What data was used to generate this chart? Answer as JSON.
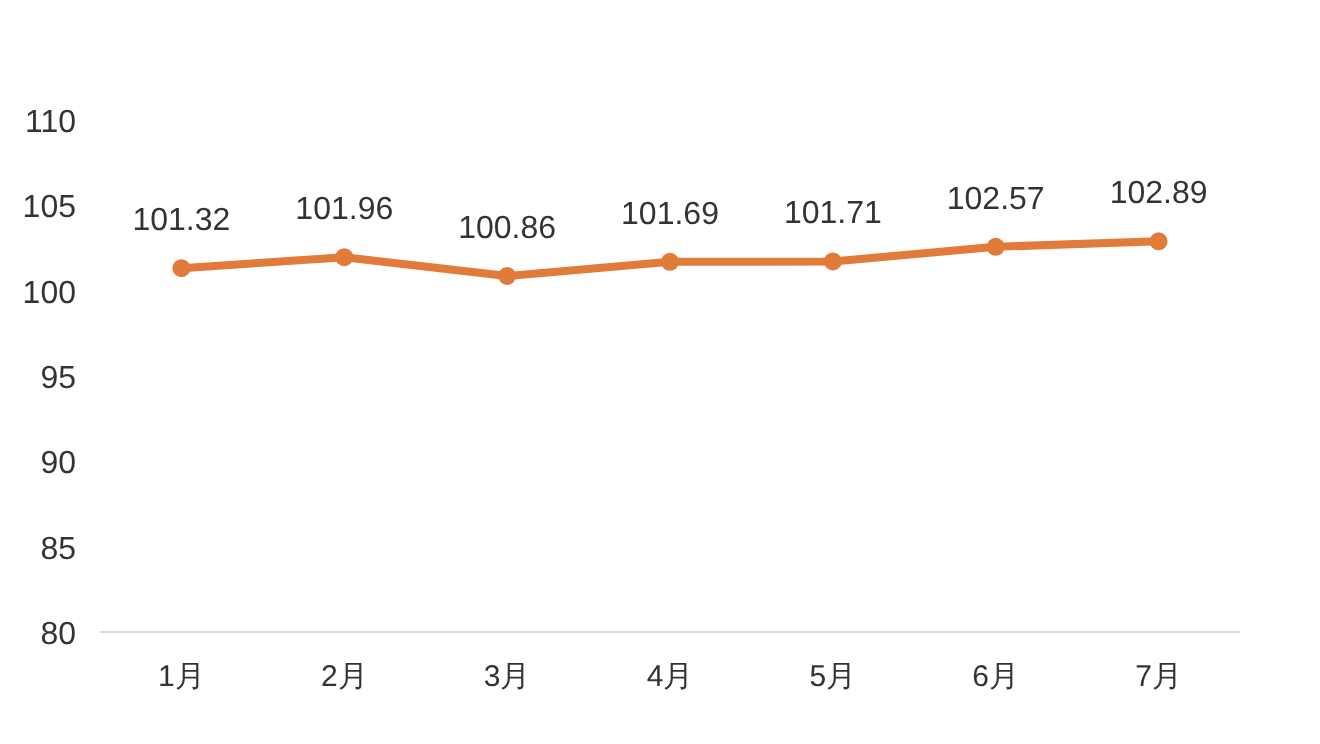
{
  "chart_data": {
    "type": "line",
    "categories": [
      "1月",
      "2月",
      "3月",
      "4月",
      "5月",
      "6月",
      "7月"
    ],
    "series": [
      {
        "color": "#e07b39",
        "values": [
          101.32,
          101.96,
          100.86,
          101.69,
          101.71,
          102.57,
          102.89
        ]
      }
    ],
    "ylim": [
      80,
      110
    ],
    "yticks": [
      80,
      85,
      90,
      95,
      100,
      105,
      110
    ],
    "data_labels": true,
    "marker": "circle",
    "line_style": "solid"
  }
}
